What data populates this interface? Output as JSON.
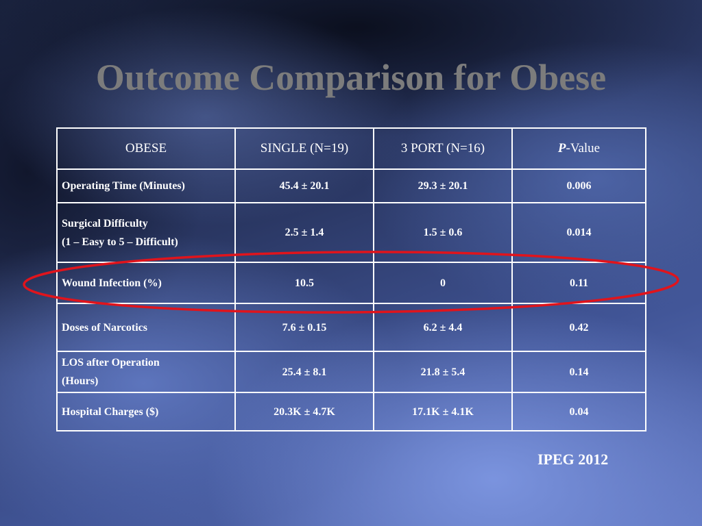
{
  "slide": {
    "title": "Outcome Comparison for Obese",
    "footer": "IPEG 2012",
    "highlight_color": "#e0141c"
  },
  "table": {
    "headers": [
      "OBESE",
      "SINGLE (N=19)",
      "3 PORT (N=16)"
    ],
    "pvalue_header": {
      "italic": "P",
      "rest": "-Value"
    },
    "rows": [
      {
        "label": [
          "Operating Time (Minutes)"
        ],
        "single": "45.4 ± 20.1",
        "port3": "29.3 ± 20.1",
        "p": "0.006"
      },
      {
        "label": [
          "Surgical Difficulty",
          "(1 – Easy to 5 – Difficult)"
        ],
        "single": "2.5 ± 1.4",
        "port3": "1.5 ± 0.6",
        "p": "0.014"
      },
      {
        "label": [
          "Wound Infection (%)"
        ],
        "single": "10.5",
        "port3": "0",
        "p": "0.11"
      },
      {
        "label": [
          "Doses of Narcotics"
        ],
        "single": "7.6 ± 0.15",
        "port3": "6.2 ± 4.4",
        "p": "0.42"
      },
      {
        "label": [
          "LOS after Operation",
          "(Hours)"
        ],
        "single": "25.4 ± 8.1",
        "port3": "21.8 ± 5.4",
        "p": "0.14"
      },
      {
        "label": [
          "Hospital Charges ($)"
        ],
        "single": "20.3K ± 4.7K",
        "port3": "17.1K ± 4.1K",
        "p": "0.04"
      }
    ]
  }
}
